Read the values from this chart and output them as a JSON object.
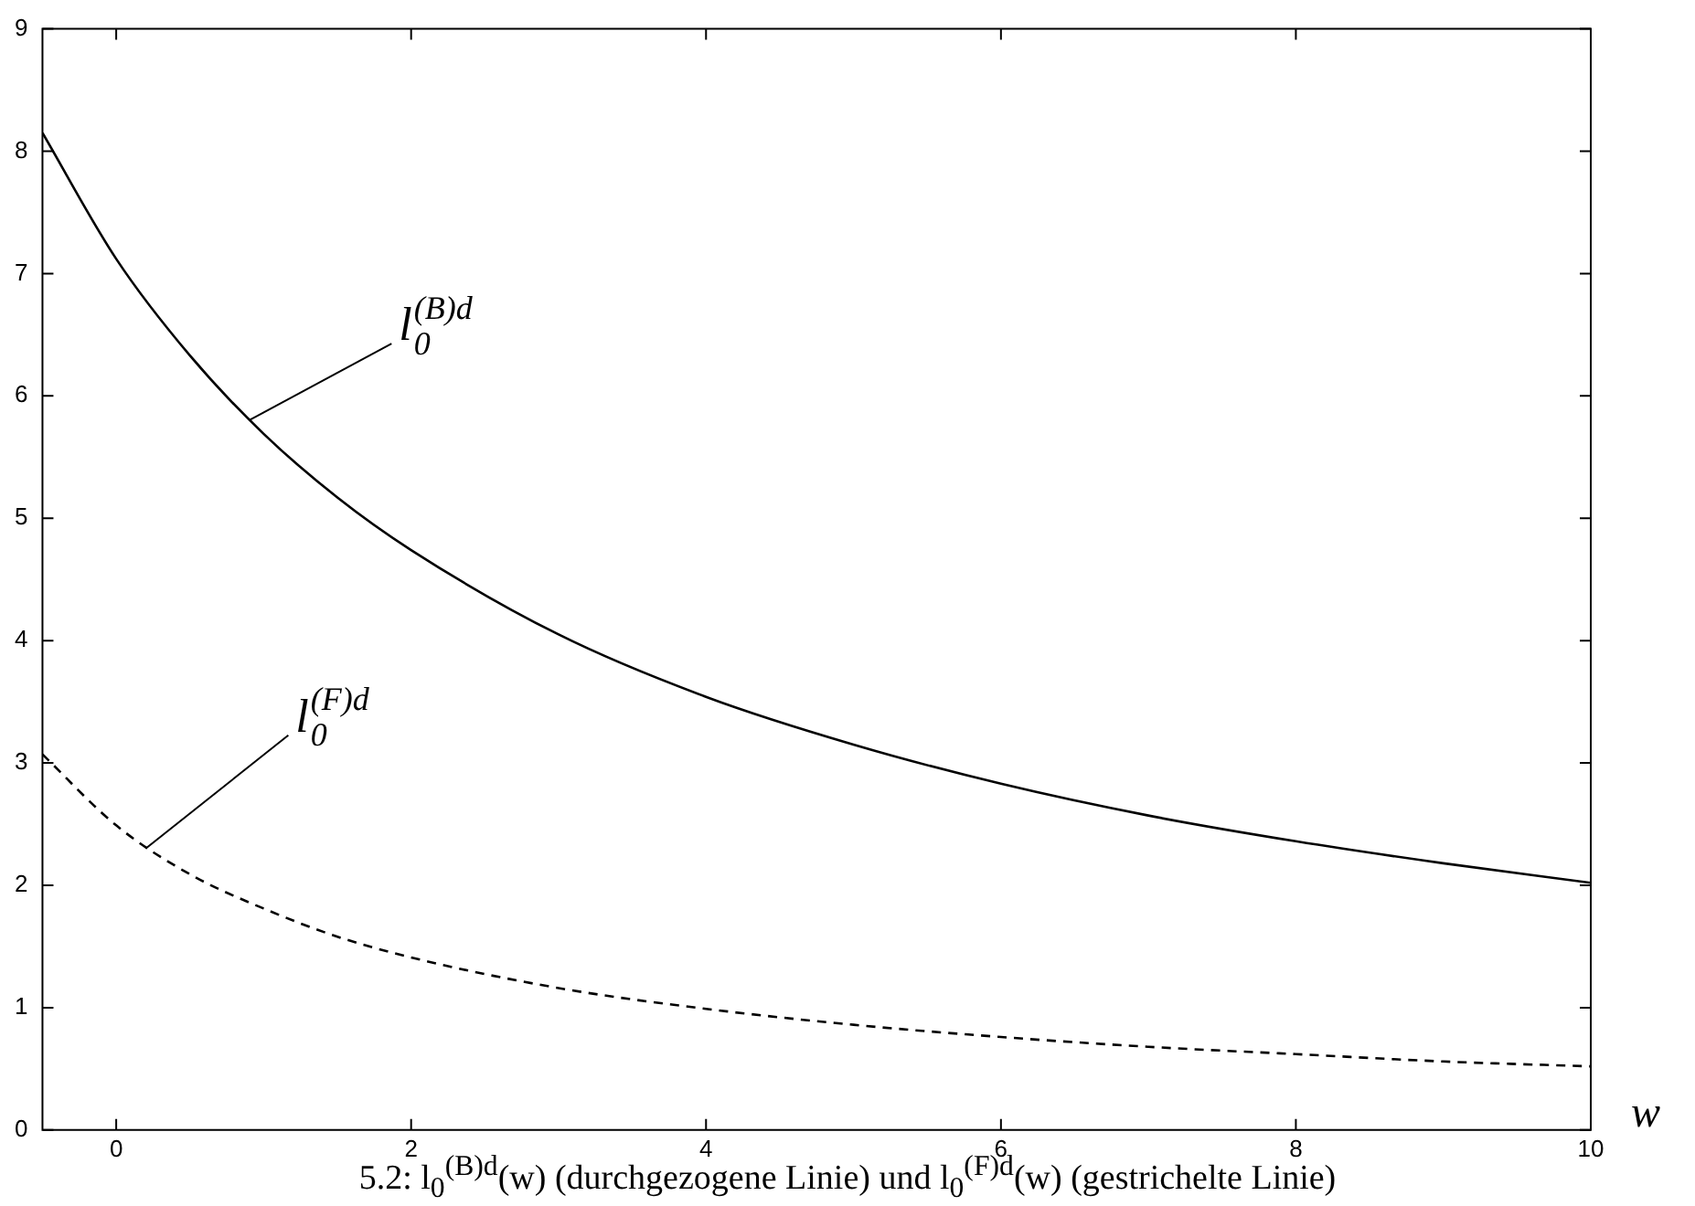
{
  "chart_data": {
    "type": "line",
    "xlabel": "w",
    "xlim": [
      -0.5,
      10
    ],
    "xticks": [
      0,
      2,
      4,
      6,
      8,
      10
    ],
    "ylim": [
      0,
      9
    ],
    "yticks": [
      0,
      1,
      2,
      3,
      4,
      5,
      6,
      7,
      8,
      9
    ],
    "grid": false,
    "legend": false,
    "marker": "none",
    "series": [
      {
        "color": "#000000",
        "line_style": "solid",
        "x": [
          -0.5,
          0,
          0.5,
          1,
          1.5,
          2,
          3,
          4,
          5,
          6,
          7,
          8,
          9,
          10
        ],
        "values": [
          8.15,
          7.12,
          6.33,
          5.69,
          5.17,
          4.74,
          4.05,
          3.54,
          3.15,
          2.83,
          2.57,
          2.36,
          2.18,
          2.02
        ]
      },
      {
        "color": "#000000",
        "line_style": "dashed",
        "x": [
          -0.5,
          0,
          0.5,
          1,
          1.5,
          2,
          3,
          4,
          5,
          6,
          7,
          8,
          9,
          10
        ],
        "values": [
          3.07,
          2.49,
          2.09,
          1.81,
          1.58,
          1.41,
          1.16,
          0.99,
          0.86,
          0.76,
          0.68,
          0.62,
          0.56,
          0.52
        ]
      }
    ],
    "annotations": [
      {
        "text": "l$_{0}$$^{(B)d}$",
        "x": 0.9,
        "y": 5.8
      },
      {
        "text": "l$_{0}$$^{(F)d}$",
        "x": 0.2,
        "y": 2.3
      },
      "5.2: l$_{0}$$^{(B)d}$(w) (durchgezogene Linie) und l$_{0}$$^{(F)d}$(w) (gestrichelte Linie)"
    ]
  }
}
